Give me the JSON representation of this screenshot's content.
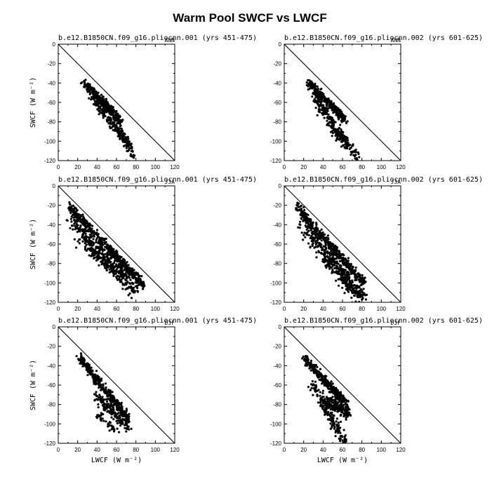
{
  "title": "Warm Pool SWCF vs LWCF",
  "xlabel": "LWCF (W m⁻²)",
  "ylabel": "SWCF (W m⁻²)",
  "xticks": [
    0,
    10,
    20,
    30,
    40,
    50,
    60,
    70,
    80,
    90,
    100,
    110,
    120
  ],
  "xtick_labels": [
    "0",
    "",
    "20",
    "",
    "40",
    "",
    "60",
    "",
    "80",
    "",
    "100",
    "",
    "120"
  ],
  "yticks": [
    0,
    -10,
    -20,
    -30,
    -40,
    -50,
    -60,
    -70,
    -80,
    -90,
    -100,
    -110,
    -120
  ],
  "ytick_labels": [
    "0",
    "",
    "-20",
    "",
    "-40",
    "",
    "-60",
    "",
    "-80",
    "",
    "-100",
    "",
    "-120"
  ],
  "chart_data": [
    {
      "type": "scatter",
      "title": "b.e12.B1850CN.f09_g16.pliocnn.001 (yrs 451-475)",
      "season": "ANN",
      "xlim": [
        0,
        120
      ],
      "ylim": [
        -120,
        0
      ],
      "reference_line": {
        "x": [
          0,
          120
        ],
        "y": [
          0,
          -120
        ]
      },
      "clusters": [
        {
          "x": [
            27,
            64
          ],
          "y": [
            -40,
            -79
          ],
          "spread": 4,
          "n": 360
        },
        {
          "x": [
            36,
            74
          ],
          "y": [
            -57,
            -105
          ],
          "spread": 5,
          "n": 170
        },
        {
          "x": [
            62,
            78
          ],
          "y": [
            -85,
            -118
          ],
          "spread": 4,
          "n": 55
        }
      ]
    },
    {
      "type": "scatter",
      "title": "b.e12.B1850CN.f09_g16.pliocnn.002 (yrs 601-625)",
      "season": "ANN",
      "xlim": [
        0,
        120
      ],
      "ylim": [
        -120,
        0
      ],
      "reference_line": {
        "x": [
          0,
          120
        ],
        "y": [
          0,
          -120
        ]
      },
      "clusters": [
        {
          "x": [
            25,
            63
          ],
          "y": [
            -40,
            -78
          ],
          "spread": 3.5,
          "n": 320
        },
        {
          "x": [
            30,
            66
          ],
          "y": [
            -52,
            -108
          ],
          "spread": 5,
          "n": 200
        },
        {
          "x": [
            56,
            76
          ],
          "y": [
            -88,
            -118
          ],
          "spread": 4,
          "n": 60
        }
      ]
    },
    {
      "type": "scatter",
      "title": "b.e12.B1850CN.f09_g16.pliocnn.001 (yrs 451-475)",
      "season": "JJA",
      "xlim": [
        0,
        120
      ],
      "ylim": [
        -120,
        0
      ],
      "reference_line": {
        "x": [
          0,
          120
        ],
        "y": [
          0,
          -120
        ]
      },
      "clusters": [
        {
          "x": [
            10,
            88
          ],
          "y": [
            -20,
            -103
          ],
          "spread": 4,
          "n": 500
        },
        {
          "x": [
            14,
            80
          ],
          "y": [
            -35,
            -110
          ],
          "spread": 7,
          "n": 330
        },
        {
          "x": [
            20,
            60
          ],
          "y": [
            -55,
            -90
          ],
          "spread": 6,
          "n": 90
        }
      ]
    },
    {
      "type": "scatter",
      "title": "b.e12.B1850CN.f09_g16.pliocnn.002 (yrs 601-625)",
      "season": "JJA",
      "xlim": [
        0,
        120
      ],
      "ylim": [
        -120,
        0
      ],
      "reference_line": {
        "x": [
          0,
          120
        ],
        "y": [
          0,
          -120
        ]
      },
      "clusters": [
        {
          "x": [
            13,
            82
          ],
          "y": [
            -22,
            -100
          ],
          "spread": 4,
          "n": 430
        },
        {
          "x": [
            18,
            78
          ],
          "y": [
            -38,
            -113
          ],
          "spread": 8,
          "n": 380
        },
        {
          "x": [
            40,
            84
          ],
          "y": [
            -75,
            -118
          ],
          "spread": 5,
          "n": 90
        }
      ]
    },
    {
      "type": "scatter",
      "title": "b.e12.B1850CN.f09_g16.pliocnn.001 (yrs 451-475)",
      "season": "DJF",
      "xlim": [
        0,
        120
      ],
      "ylim": [
        -120,
        0
      ],
      "reference_line": {
        "x": [
          0,
          120
        ],
        "y": [
          0,
          -120
        ]
      },
      "clusters": [
        {
          "x": [
            22,
            72
          ],
          "y": [
            -32,
            -95
          ],
          "spread": 4,
          "n": 380
        },
        {
          "x": [
            38,
            72
          ],
          "y": [
            -70,
            -103
          ],
          "spread": 5,
          "n": 160
        },
        {
          "x": [
            40,
            60
          ],
          "y": [
            -90,
            -108
          ],
          "spread": 4,
          "n": 40
        }
      ]
    },
    {
      "type": "scatter",
      "title": "b.e12.B1850CN.f09_g16.pliocnn.002 (yrs 601-625)",
      "season": "DJF",
      "xlim": [
        0,
        120
      ],
      "ylim": [
        -120,
        0
      ],
      "reference_line": {
        "x": [
          0,
          120
        ],
        "y": [
          0,
          -120
        ]
      },
      "clusters": [
        {
          "x": [
            20,
            65
          ],
          "y": [
            -32,
            -80
          ],
          "spread": 4,
          "n": 300
        },
        {
          "x": [
            40,
            68
          ],
          "y": [
            -75,
            -90
          ],
          "spread": 5,
          "n": 200
        },
        {
          "x": [
            28,
            62
          ],
          "y": [
            -58,
            -118
          ],
          "spread": 5,
          "n": 160
        }
      ]
    }
  ]
}
